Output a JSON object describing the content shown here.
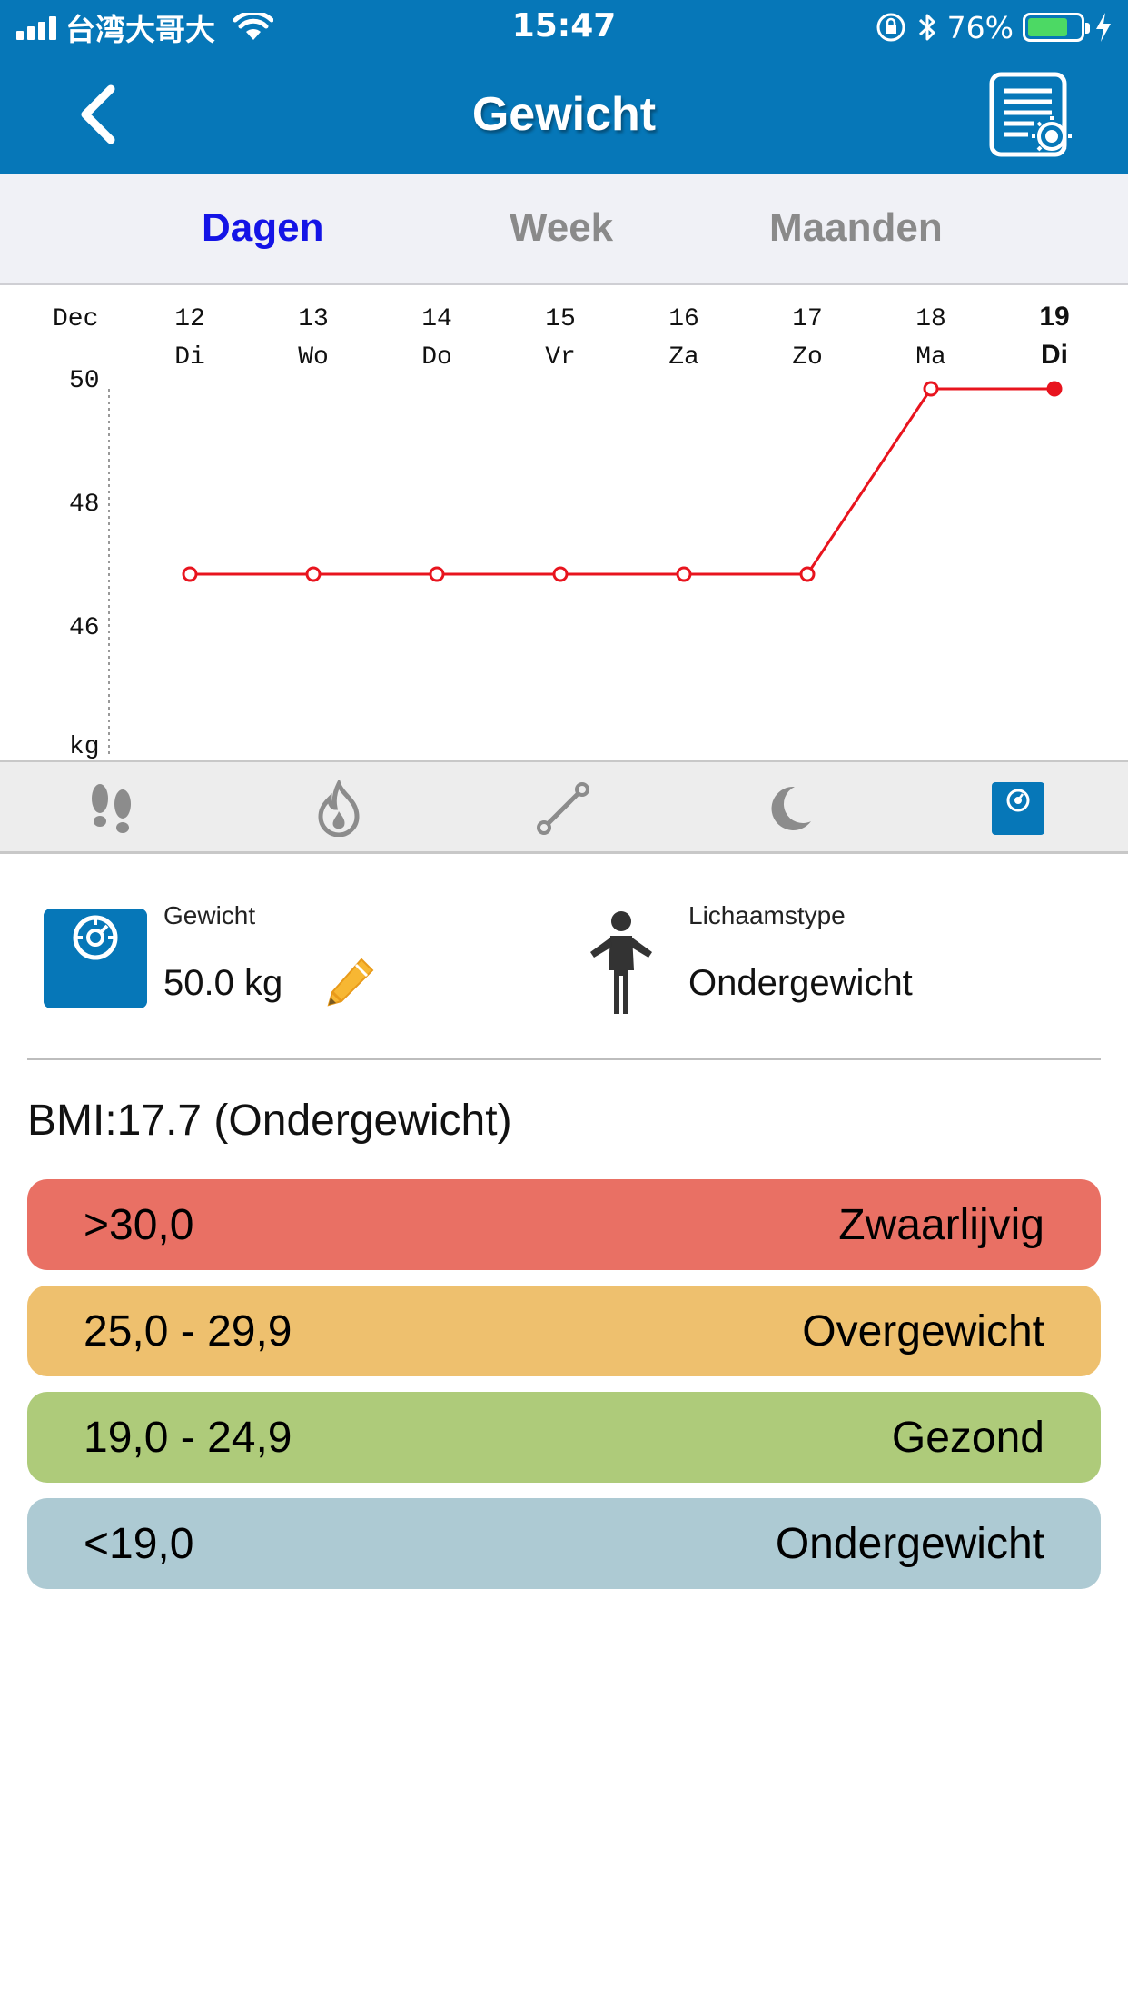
{
  "status_bar": {
    "carrier": "台湾大哥大",
    "time": "15:47",
    "battery_percent": "76%",
    "battery_level": 0.76
  },
  "nav": {
    "title": "Gewicht"
  },
  "tabs": [
    {
      "label": "Dagen",
      "active": true
    },
    {
      "label": "Week",
      "active": false
    },
    {
      "label": "Maanden",
      "active": false
    }
  ],
  "chart_data": {
    "type": "line",
    "month_label": "Dec",
    "x": [
      "12",
      "13",
      "14",
      "15",
      "16",
      "17",
      "18",
      "19"
    ],
    "weekdays": [
      "Di",
      "Wo",
      "Do",
      "Vr",
      "Za",
      "Zo",
      "Ma",
      "Di"
    ],
    "highlight_index": 7,
    "series": [
      {
        "values": [
          47,
          47,
          47,
          47,
          47,
          47,
          50,
          50
        ],
        "color": "#E8141E"
      }
    ],
    "y_ticks": [
      "50",
      "48",
      "46"
    ],
    "ylabel": "kg",
    "ylim": [
      44,
      50
    ]
  },
  "metric_bar": {
    "items": [
      "footsteps-icon",
      "flame-icon",
      "distance-icon",
      "moon-icon",
      "scale-icon"
    ],
    "active_index": 4
  },
  "weight": {
    "label": "Gewicht",
    "value": "50.0 kg"
  },
  "body_type": {
    "label": "Lichaamstype",
    "value": "Ondergewicht"
  },
  "bmi": {
    "text": "BMI:17.7 (Ondergewicht)"
  },
  "ranges": [
    {
      "range": ">30,0",
      "label": "Zwaarlijvig",
      "color": "#E97064"
    },
    {
      "range": "25,0 - 29,9",
      "label": "Overgewicht",
      "color": "#EEC06E"
    },
    {
      "range": "19,0 - 24,9",
      "label": "Gezond",
      "color": "#AECB7A"
    },
    {
      "range": "<19,0",
      "label": "Ondergewicht",
      "color": "#ADCAD3"
    }
  ]
}
